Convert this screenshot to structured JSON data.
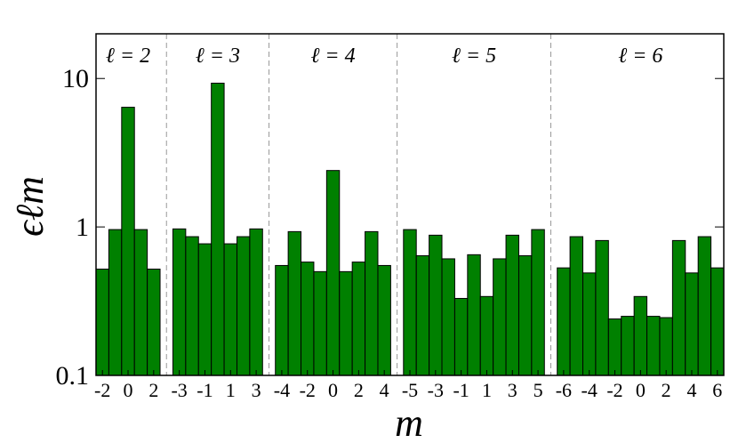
{
  "chart_data": {
    "type": "grouped-bar",
    "xlabel": "m",
    "ylabel": "ϵℓm",
    "log_y": true,
    "ylim": [
      0.1,
      20
    ],
    "yticks": [
      0.1,
      1,
      10
    ],
    "color": "#008000",
    "groups": [
      {
        "label": "ℓ = 2",
        "categories": [
          -2,
          null,
          0,
          null,
          2
        ],
        "values": [
          0.52,
          0.96,
          6.4,
          0.96,
          0.52
        ]
      },
      {
        "label": "ℓ = 3",
        "categories": [
          -3,
          null,
          -1,
          null,
          1,
          null,
          3
        ],
        "values": [
          0.97,
          0.86,
          0.77,
          9.3,
          0.77,
          0.86,
          0.97
        ]
      },
      {
        "label": "ℓ = 4",
        "categories": [
          -4,
          null,
          -2,
          null,
          0,
          null,
          2,
          null,
          4
        ],
        "values": [
          0.55,
          0.93,
          0.58,
          0.5,
          2.4,
          0.5,
          0.58,
          0.93,
          0.55
        ]
      },
      {
        "label": "ℓ = 5",
        "categories": [
          -5,
          null,
          -3,
          null,
          -1,
          null,
          1,
          null,
          3,
          null,
          5
        ],
        "values": [
          0.96,
          0.64,
          0.88,
          0.61,
          0.33,
          0.65,
          0.34,
          0.61,
          0.88,
          0.64,
          0.96
        ]
      },
      {
        "label": "ℓ = 6",
        "categories": [
          -6,
          null,
          -4,
          null,
          -2,
          null,
          0,
          null,
          2,
          null,
          4,
          null,
          6
        ],
        "values": [
          0.53,
          0.86,
          0.49,
          0.81,
          0.24,
          0.25,
          0.34,
          0.25,
          0.245,
          0.81,
          0.49,
          0.86,
          0.53
        ]
      }
    ]
  }
}
